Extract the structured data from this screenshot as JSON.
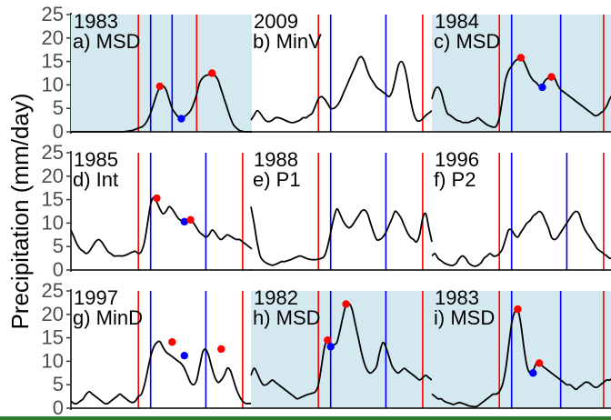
{
  "chart_data": {
    "type": "line",
    "ylabel": "Precipitation (mm/day)",
    "ylim": [
      0,
      25
    ],
    "yticks": [
      0,
      5,
      10,
      15,
      20,
      25
    ],
    "grid": false,
    "colors": {
      "msd_shade": "#d4e8f0",
      "line": "#000000",
      "red": "#ff0000",
      "blue": "#0000ff"
    },
    "panels": [
      {
        "year": "1983",
        "label": "a) MSD",
        "shaded": true,
        "y": [
          0,
          0,
          0,
          0,
          0,
          0,
          0,
          0,
          0,
          0,
          0,
          0,
          0,
          0,
          0,
          0,
          0,
          0,
          0.1,
          0.2,
          0.3,
          0.5,
          0.8,
          1,
          1.5,
          2.5,
          4,
          6,
          8,
          9.5,
          9.8,
          9,
          7,
          5,
          4,
          3.2,
          3,
          3.2,
          3.8,
          4.5,
          6,
          8,
          10.5,
          11.5,
          12,
          12.2,
          12.5,
          12,
          11,
          9,
          7,
          5,
          3,
          1.5,
          0.8,
          0.3,
          0.1,
          0,
          0,
          0
        ],
        "vlines_red": [
          22,
          41
        ],
        "vlines_blue": [
          26,
          33
        ],
        "points": [
          {
            "x": 29,
            "y": 9.7,
            "color": "red"
          },
          {
            "x": 36,
            "y": 2.8,
            "color": "blue"
          },
          {
            "x": 46,
            "y": 12.5,
            "color": "red"
          }
        ]
      },
      {
        "year": "2009",
        "label": "b) MinV",
        "shaded": false,
        "y": [
          2.5,
          3.5,
          4.5,
          4,
          3,
          2.3,
          2.2,
          2.5,
          3,
          3,
          2.8,
          2.5,
          2.2,
          2,
          2,
          2.2,
          2.5,
          3,
          3,
          3.5,
          4,
          5.5,
          7,
          7.5,
          7,
          6,
          5,
          5,
          5.5,
          6.5,
          8,
          9.5,
          11,
          12.5,
          14,
          15.5,
          16,
          15,
          13,
          11.5,
          10.5,
          9.5,
          9,
          8.5,
          8,
          7.5,
          8.5,
          11,
          14,
          15,
          14,
          11,
          7,
          4,
          2.5,
          2.3,
          2.8,
          3.5,
          4,
          4.5
        ],
        "vlines_red": [
          22,
          56
        ],
        "vlines_blue": [
          26,
          44
        ],
        "points": []
      },
      {
        "year": "1984",
        "label": "c) MSD",
        "shaded": true,
        "y": [
          7,
          9,
          9.5,
          8.5,
          6,
          4,
          3.5,
          3,
          2.5,
          2.3,
          2,
          2,
          2,
          2.3,
          2.5,
          3,
          2.5,
          2,
          1.5,
          1.2,
          1,
          1.2,
          3,
          7,
          11,
          13,
          14,
          15,
          15.5,
          16,
          15,
          13.5,
          12,
          11,
          10.5,
          9.8,
          10,
          11,
          11.5,
          12,
          11.5,
          10,
          9,
          8.5,
          8,
          7.5,
          7,
          6.5,
          6,
          5.5,
          5,
          4.5,
          4,
          3.5,
          3.5,
          4,
          4.5,
          5.5,
          7,
          8
        ],
        "vlines_red": [
          22,
          56
        ],
        "vlines_blue": [
          26,
          42
        ],
        "points": [
          {
            "x": 29,
            "y": 15.8,
            "color": "red"
          },
          {
            "x": 36,
            "y": 9.5,
            "color": "blue"
          },
          {
            "x": 39,
            "y": 11.7,
            "color": "red"
          }
        ]
      },
      {
        "year": "1985",
        "label": "d) Int",
        "shaded": false,
        "y": [
          8.5,
          7,
          5.5,
          4.5,
          4,
          3.5,
          4,
          5,
          6,
          6.5,
          6,
          5,
          4,
          3.5,
          3,
          3,
          3,
          3,
          3.2,
          3.5,
          3.8,
          4,
          3.5,
          4,
          6,
          10,
          14,
          15.5,
          14.5,
          13,
          12,
          12.5,
          13.5,
          13,
          12,
          11,
          10.5,
          10.2,
          10.5,
          10.5,
          10,
          9,
          8,
          7.5,
          7,
          7.5,
          8.5,
          8,
          7,
          6.5,
          7,
          7.5,
          7.2,
          6.8,
          6.5,
          6.5,
          6,
          5.5,
          5,
          4.5
        ],
        "vlines_red": [
          22,
          56
        ],
        "vlines_blue": [
          26,
          44
        ],
        "points": [
          {
            "x": 28,
            "y": 15.3,
            "color": "red"
          },
          {
            "x": 37,
            "y": 10.3,
            "color": "blue"
          },
          {
            "x": 39,
            "y": 10.7,
            "color": "red"
          }
        ]
      },
      {
        "year": "1988",
        "label": "e) P1",
        "shaded": false,
        "y": [
          13.5,
          10,
          6,
          3,
          2,
          1.5,
          1.2,
          1,
          1.2,
          1.5,
          1.8,
          1.8,
          2,
          2.2,
          2.5,
          2.8,
          3,
          2.8,
          2.5,
          2.3,
          2.2,
          2.2,
          2.3,
          2.5,
          3,
          5,
          8,
          11,
          13,
          12,
          10.5,
          9.5,
          9,
          9.5,
          10.5,
          11.5,
          12.5,
          12.8,
          12,
          10,
          8,
          6.5,
          6.5,
          7,
          8,
          9.5,
          11,
          12.5,
          12,
          11,
          9.5,
          8,
          7,
          6.5,
          6,
          7.5,
          11,
          12,
          9,
          6
        ],
        "vlines_red": [
          22,
          56
        ],
        "vlines_blue": [
          26,
          44
        ],
        "points": []
      },
      {
        "year": "1996",
        "label": "f) P2",
        "shaded": false,
        "y": [
          3,
          3.5,
          2.5,
          2,
          1.5,
          1.2,
          1,
          1,
          1.5,
          2.5,
          3,
          2.5,
          1.5,
          1,
          0.8,
          1,
          1.5,
          2.5,
          3,
          3.5,
          3,
          3,
          3.5,
          4.5,
          6.5,
          8.5,
          8.5,
          7.5,
          7,
          8,
          9,
          10,
          10.5,
          11.5,
          12,
          12.5,
          12,
          10.5,
          9,
          7,
          6.5,
          7,
          8,
          9,
          10,
          11,
          12,
          12.5,
          12,
          10,
          8.5,
          7.5,
          6.5,
          5.5,
          4.5,
          4,
          3.5,
          3,
          2.5,
          2.5
        ],
        "vlines_red": [
          22,
          56
        ],
        "vlines_blue": [
          26,
          44
        ],
        "points": []
      },
      {
        "year": "1997",
        "label": "g) MinD",
        "shaded": false,
        "y": [
          1.5,
          1,
          1,
          1.5,
          2,
          3,
          3.5,
          3,
          2.5,
          2,
          1.5,
          1,
          1,
          1.5,
          2,
          2.5,
          3,
          2.5,
          2,
          1.5,
          1.2,
          1.5,
          2.5,
          3,
          5,
          8,
          11,
          13,
          14,
          14.2,
          13,
          12,
          11.5,
          11,
          10.5,
          10,
          9.5,
          8.5,
          7,
          5.5,
          5,
          6,
          9,
          12,
          12.5,
          11,
          8.5,
          6.5,
          5.5,
          6,
          7,
          8.5,
          8,
          6,
          4,
          2.5,
          1.5,
          1,
          1,
          1
        ],
        "vlines_red": [
          22,
          56
        ],
        "vlines_blue": [
          26,
          44
        ],
        "points": [
          {
            "x": 33,
            "y": 14.1,
            "color": "red"
          },
          {
            "x": 37,
            "y": 11.2,
            "color": "blue"
          },
          {
            "x": 49,
            "y": 12.6,
            "color": "red"
          }
        ]
      },
      {
        "year": "1982",
        "label": "h) MSD",
        "shaded": true,
        "y": [
          7,
          8.5,
          7.5,
          6,
          5,
          5,
          5.5,
          6,
          5.5,
          5,
          4.5,
          4,
          3.5,
          3,
          2.5,
          2,
          2.2,
          2.5,
          2.8,
          3,
          3.2,
          3.5,
          5,
          9,
          13,
          14.5,
          13,
          13.5,
          14,
          16.5,
          19.5,
          22,
          22.3,
          21,
          18,
          15,
          12,
          9.5,
          8,
          7.5,
          8,
          9,
          12,
          14,
          13,
          11,
          9,
          8,
          7.5,
          8,
          8.5,
          8,
          7.5,
          7,
          6.5,
          6,
          6.5,
          7,
          6.5,
          6
        ],
        "vlines_red": [
          22,
          56
        ],
        "vlines_blue": [
          26,
          44
        ],
        "points": [
          {
            "x": 25,
            "y": 14.5,
            "color": "red"
          },
          {
            "x": 26,
            "y": 13.1,
            "color": "blue"
          },
          {
            "x": 31,
            "y": 22.2,
            "color": "red"
          }
        ]
      },
      {
        "year": "1983",
        "label": "i) MSD",
        "shaded": true,
        "y": [
          3,
          2.5,
          2,
          2,
          1.5,
          1.2,
          1,
          0.8,
          1,
          1.2,
          1,
          0.8,
          0.5,
          0.4,
          0.3,
          0.5,
          1,
          1.5,
          2,
          2.5,
          3,
          3,
          3.5,
          5,
          8,
          13,
          18,
          20.5,
          21,
          18,
          13,
          9,
          7.5,
          8,
          9.5,
          10,
          9,
          8.5,
          8,
          7.5,
          7,
          6.5,
          6,
          5.5,
          5,
          5,
          4.5,
          4,
          4.5,
          5,
          5.5,
          5.5,
          5,
          4.5,
          4.5,
          5,
          5.5,
          6,
          6,
          6.5
        ],
        "vlines_red": [
          22,
          56
        ],
        "vlines_blue": [
          26,
          42
        ],
        "points": [
          {
            "x": 28,
            "y": 21.1,
            "color": "red"
          },
          {
            "x": 33,
            "y": 7.5,
            "color": "blue"
          },
          {
            "x": 35,
            "y": 9.6,
            "color": "red"
          }
        ]
      }
    ]
  }
}
